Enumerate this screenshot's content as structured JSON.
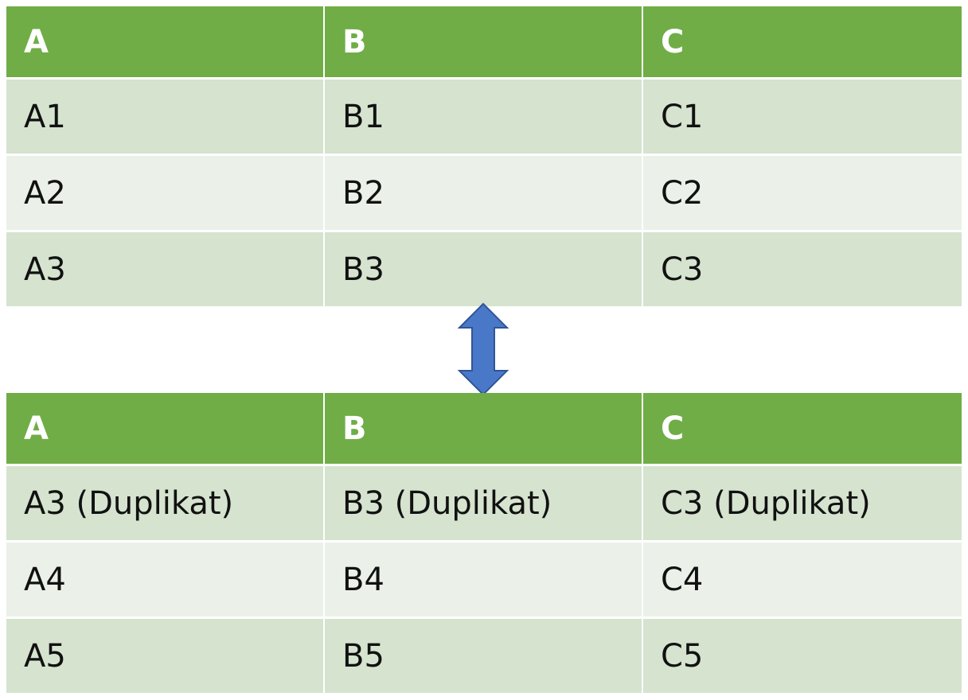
{
  "colors": {
    "header": "#70ad47",
    "row_odd": "#d5e3cf",
    "row_even": "#ebf1e9",
    "arrow": "#4472c4"
  },
  "arrow_icon": "double-vertical-arrow",
  "table_top": {
    "headers": [
      "A",
      "B",
      "C"
    ],
    "rows": [
      [
        "A1",
        "B1",
        "C1"
      ],
      [
        "A2",
        "B2",
        "C2"
      ],
      [
        "A3",
        "B3",
        "C3"
      ]
    ]
  },
  "table_bottom": {
    "headers": [
      "A",
      "B",
      "C"
    ],
    "rows": [
      [
        "A3 (Duplikat)",
        "B3 (Duplikat)",
        "C3 (Duplikat)"
      ],
      [
        "A4",
        "B4",
        "C4"
      ],
      [
        "A5",
        "B5",
        "C5"
      ]
    ]
  }
}
